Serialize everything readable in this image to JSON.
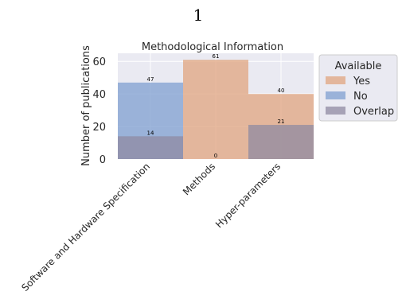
{
  "page_number": "1",
  "chart_data": {
    "type": "bar",
    "title": "Methodological Information",
    "xlabel": "",
    "ylabel": "Number of publications",
    "ylim": [
      0,
      65
    ],
    "yticks": [
      0,
      20,
      40,
      60
    ],
    "categories": [
      "Software and Hardware Specification",
      "Methods",
      "Hyper-parameters"
    ],
    "series": [
      {
        "name": "Yes",
        "values": [
          0,
          61,
          40
        ],
        "color": "#e0a47f"
      },
      {
        "name": "No",
        "values": [
          47,
          0,
          0
        ],
        "color": "#7f9fd0"
      },
      {
        "name": "Overlap",
        "values": [
          14,
          0,
          21
        ],
        "color": "#8f8aa2"
      }
    ],
    "data_labels": [
      {
        "category": "Software and Hardware Specification",
        "value": 47
      },
      {
        "category": "Software and Hardware Specification",
        "value": 14
      },
      {
        "category": "Methods",
        "value": 61
      },
      {
        "category": "Methods",
        "value": 0
      },
      {
        "category": "Hyper-parameters",
        "value": 40
      },
      {
        "category": "Hyper-parameters",
        "value": 21
      }
    ],
    "legend": {
      "title": "Available",
      "placement": "right"
    },
    "grid": true,
    "background": "#eaeaf2"
  }
}
